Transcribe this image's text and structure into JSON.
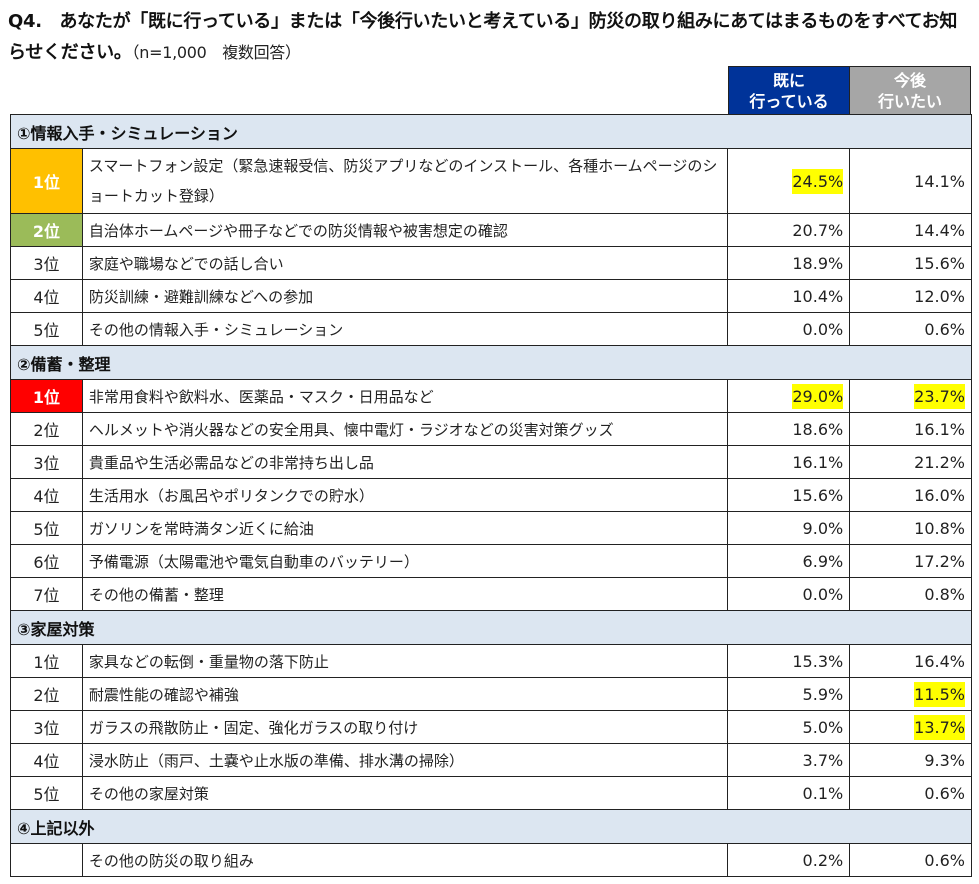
{
  "title": {
    "question": "Q4.　あなたが「既に行っている」または「今後行いたいと考えている」防災の取り組みにあてはまるものをすべてお知らせください。",
    "note": "（n=1,000　複数回答）"
  },
  "columns": {
    "done": "既に\n行っている",
    "done_line1": "既に",
    "done_line2": "行っている",
    "future_line1": "今後",
    "future_line2": "行いたい",
    "done_color": "#003399",
    "future_color": "#A6A6A6"
  },
  "colors": {
    "section_bg": "#DCE6F1",
    "rank1_info": "#FFC000",
    "rank2_info": "#9BBB59",
    "rank1_stock": "#FF0000",
    "highlight": "#FFFF00"
  },
  "sections": [
    {
      "title": "①情報入手・シミュレーション",
      "rows": [
        {
          "rank": "1位",
          "label": "スマートフォン設定（緊急速報受信、防災アプリなどのインストール、各種ホームページのショートカット登録）",
          "done": "24.5%",
          "future": "14.1%",
          "done_hl": true,
          "future_hl": false
        },
        {
          "rank": "2位",
          "label": "自治体ホームページや冊子などでの防災情報や被害想定の確認",
          "done": "20.7%",
          "future": "14.4%"
        },
        {
          "rank": "3位",
          "label": "家庭や職場などでの話し合い",
          "done": "18.9%",
          "future": "15.6%"
        },
        {
          "rank": "4位",
          "label": "防災訓練・避難訓練などへの参加",
          "done": "10.4%",
          "future": "12.0%"
        },
        {
          "rank": "5位",
          "label": "その他の情報入手・シミュレーション",
          "done": "0.0%",
          "future": "0.6%"
        }
      ]
    },
    {
      "title": "②備蓄・整理",
      "rows": [
        {
          "rank": "1位",
          "label": "非常用食料や飲料水、医薬品・マスク・日用品など",
          "done": "29.0%",
          "future": "23.7%",
          "done_hl": true,
          "future_hl": true
        },
        {
          "rank": "2位",
          "label": "ヘルメットや消火器などの安全用具、懐中電灯・ラジオなどの災害対策グッズ",
          "done": "18.6%",
          "future": "16.1%"
        },
        {
          "rank": "3位",
          "label": "貴重品や生活必需品などの非常持ち出し品",
          "done": "16.1%",
          "future": "21.2%"
        },
        {
          "rank": "4位",
          "label": "生活用水（お風呂やポリタンクでの貯水）",
          "done": "15.6%",
          "future": "16.0%"
        },
        {
          "rank": "5位",
          "label": "ガソリンを常時満タン近くに給油",
          "done": "9.0%",
          "future": "10.8%"
        },
        {
          "rank": "6位",
          "label": "予備電源（太陽電池や電気自動車のバッテリー）",
          "done": "6.9%",
          "future": "17.2%"
        },
        {
          "rank": "7位",
          "label": "その他の備蓄・整理",
          "done": "0.0%",
          "future": "0.8%"
        }
      ]
    },
    {
      "title": "③家屋対策",
      "rows": [
        {
          "rank": "1位",
          "label": "家具などの転倒・重量物の落下防止",
          "done": "15.3%",
          "future": "16.4%"
        },
        {
          "rank": "2位",
          "label": "耐震性能の確認や補強",
          "done": "5.9%",
          "future": "11.5%",
          "future_hl": true
        },
        {
          "rank": "3位",
          "label": "ガラスの飛散防止・固定、強化ガラスの取り付け",
          "done": "5.0%",
          "future": "13.7%",
          "future_hl": true
        },
        {
          "rank": "4位",
          "label": "浸水防止（雨戸、土嚢や止水版の準備、排水溝の掃除）",
          "done": "3.7%",
          "future": "9.3%"
        },
        {
          "rank": "5位",
          "label": "その他の家屋対策",
          "done": "0.1%",
          "future": "0.6%"
        }
      ]
    },
    {
      "title": "④上記以外",
      "rows": [
        {
          "rank": "",
          "label": "その他の防災の取り組み",
          "done": "0.2%",
          "future": "0.6%"
        }
      ]
    }
  ]
}
